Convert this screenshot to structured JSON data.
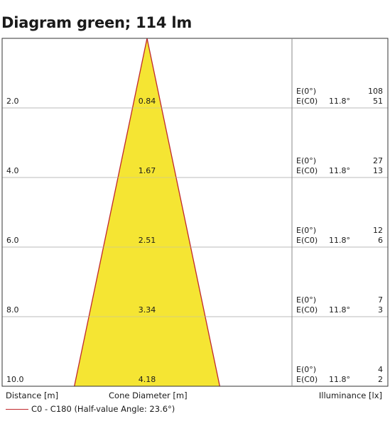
{
  "title": "Diagram green; 114 lm",
  "chart_data": {
    "type": "cone",
    "half_value_angle_deg": 23.6,
    "rows": [
      {
        "distance": "2.0",
        "diameter": "0.84",
        "E0": "108",
        "EC0": "51",
        "EC0_angle": "11.8°"
      },
      {
        "distance": "4.0",
        "diameter": "1.67",
        "E0": "27",
        "EC0": "13",
        "EC0_angle": "11.8°"
      },
      {
        "distance": "6.0",
        "diameter": "2.51",
        "E0": "12",
        "EC0": "6",
        "EC0_angle": "11.8°"
      },
      {
        "distance": "8.0",
        "diameter": "3.34",
        "E0": "7",
        "EC0": "3",
        "EC0_angle": "11.8°"
      },
      {
        "distance": "10.0",
        "diameter": "4.18",
        "E0": "4",
        "EC0": "2",
        "EC0_angle": "11.8°"
      }
    ],
    "E0_label": "E(0°)",
    "EC0_label": "E(C0)",
    "colors": {
      "cone_fill": "#f5e533",
      "cone_edge": "#c0282d",
      "grid": "#bbbbbb",
      "frame": "#333333"
    }
  },
  "footer": {
    "distance_label": "Distance [m]",
    "diameter_label": "Cone Diameter [m]",
    "illuminance_label": "Illuminance [lx]"
  },
  "legend": {
    "label": "C0 - C180 (Half-value Angle: 23.6°)"
  }
}
